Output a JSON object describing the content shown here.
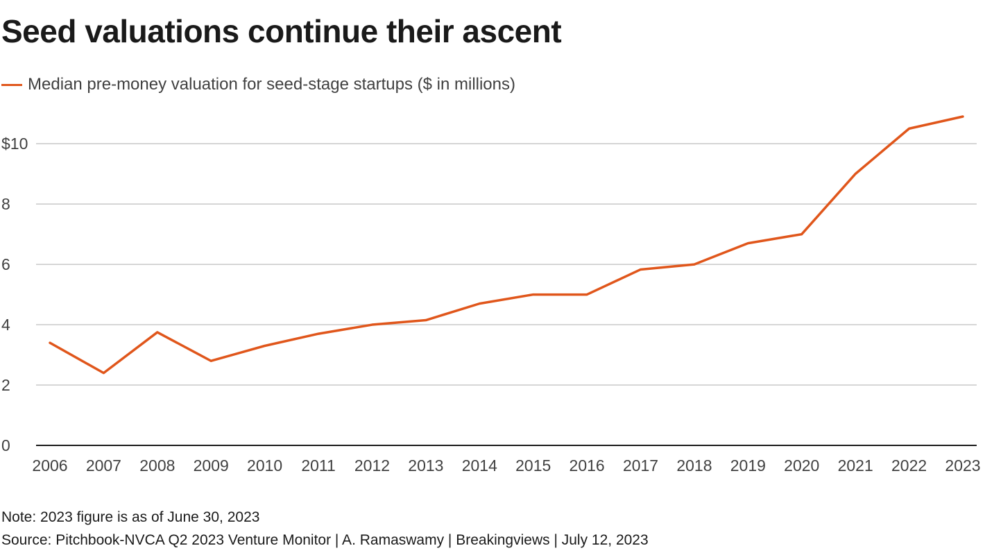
{
  "colors": {
    "series": "#e0561b",
    "grid": "#c8c8c8",
    "axis": "#1a1a1a",
    "text": "#404040"
  },
  "chart_data": {
    "type": "line",
    "title": "Seed valuations continue their ascent",
    "xlabel": "",
    "ylabel": "",
    "x": [
      "2006",
      "2007",
      "2008",
      "2009",
      "2010",
      "2011",
      "2012",
      "2013",
      "2014",
      "2015",
      "2016",
      "2017",
      "2018",
      "2019",
      "2020",
      "2021",
      "2022",
      "2023"
    ],
    "series": [
      {
        "name": "Median pre-money valuation for seed-stage startups ($ in millions)",
        "values": [
          3.4,
          2.4,
          3.75,
          2.8,
          3.3,
          3.7,
          4.0,
          4.15,
          4.7,
          5.0,
          5.0,
          5.83,
          6.0,
          6.7,
          7.0,
          9.0,
          10.5,
          10.9
        ]
      }
    ],
    "ylim": [
      0,
      10.9
    ],
    "yticks": [
      0,
      2,
      4,
      6,
      8,
      10
    ],
    "ytick_labels": [
      "0",
      "2",
      "4",
      "6",
      "8",
      "$10"
    ],
    "grid": true,
    "legend": "top-left"
  },
  "footer": {
    "note": "Note:  2023 figure is as of June 30, 2023",
    "source": "Source: Pitchbook-NVCA Q2 2023 Venture Monitor | A. Ramaswamy | Breakingviews | July 12, 2023"
  }
}
